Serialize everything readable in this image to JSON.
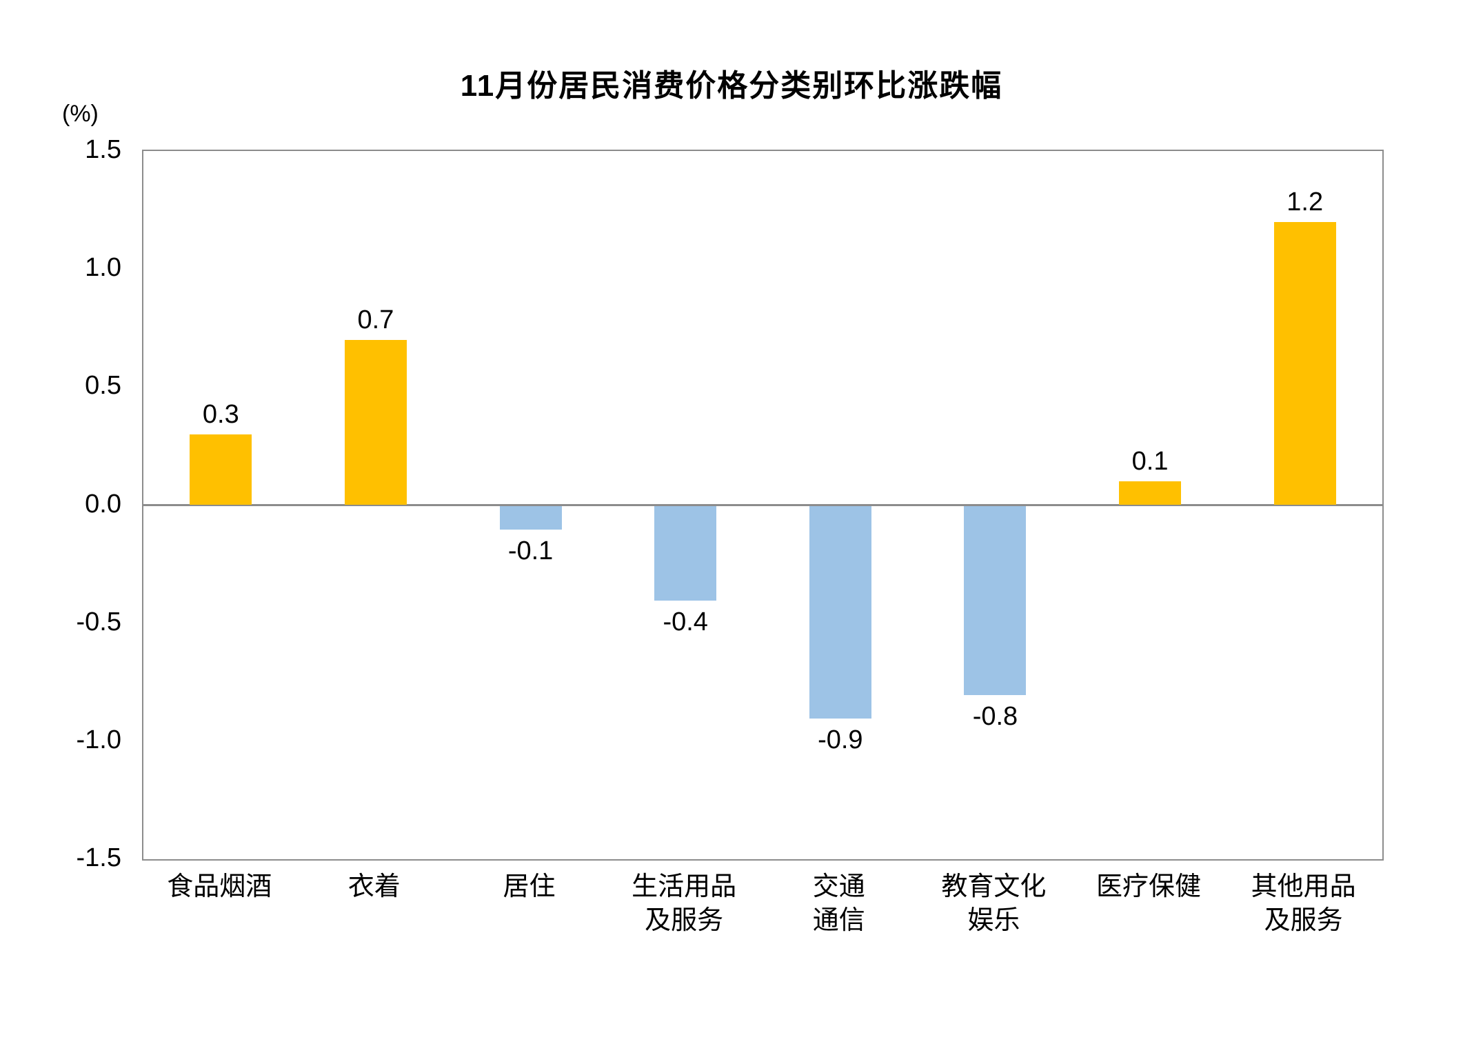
{
  "chart_data": {
    "type": "bar",
    "title": "11月份居民消费价格分类别环比涨跌幅",
    "ylabel": "(%)",
    "xlabel": "",
    "ylim": [
      -1.5,
      1.5
    ],
    "ytick_step": 0.5,
    "grid": false,
    "legend": false,
    "categories": [
      "食品烟酒",
      "衣着",
      "居住",
      "生活用品及服务",
      "交通通信",
      "教育文化娱乐",
      "医疗保健",
      "其他用品及服务"
    ],
    "category_lines": [
      [
        "食品烟酒"
      ],
      [
        "衣着"
      ],
      [
        "居住"
      ],
      [
        "生活用品",
        "及服务"
      ],
      [
        "交通",
        "通信"
      ],
      [
        "教育文化",
        "娱乐"
      ],
      [
        "医疗保健"
      ],
      [
        "其他用品",
        "及服务"
      ]
    ],
    "values": [
      0.3,
      0.7,
      -0.1,
      -0.4,
      -0.9,
      -0.8,
      0.1,
      1.2
    ],
    "labels": [
      "0.3",
      "0.7",
      "-0.1",
      "-0.4",
      "-0.9",
      "-0.8",
      "0.1",
      "1.2"
    ],
    "positive_color": "#FFC000",
    "negative_color": "#9DC3E6",
    "axis_color": "#8c8c8c",
    "text_color": "#000000"
  }
}
